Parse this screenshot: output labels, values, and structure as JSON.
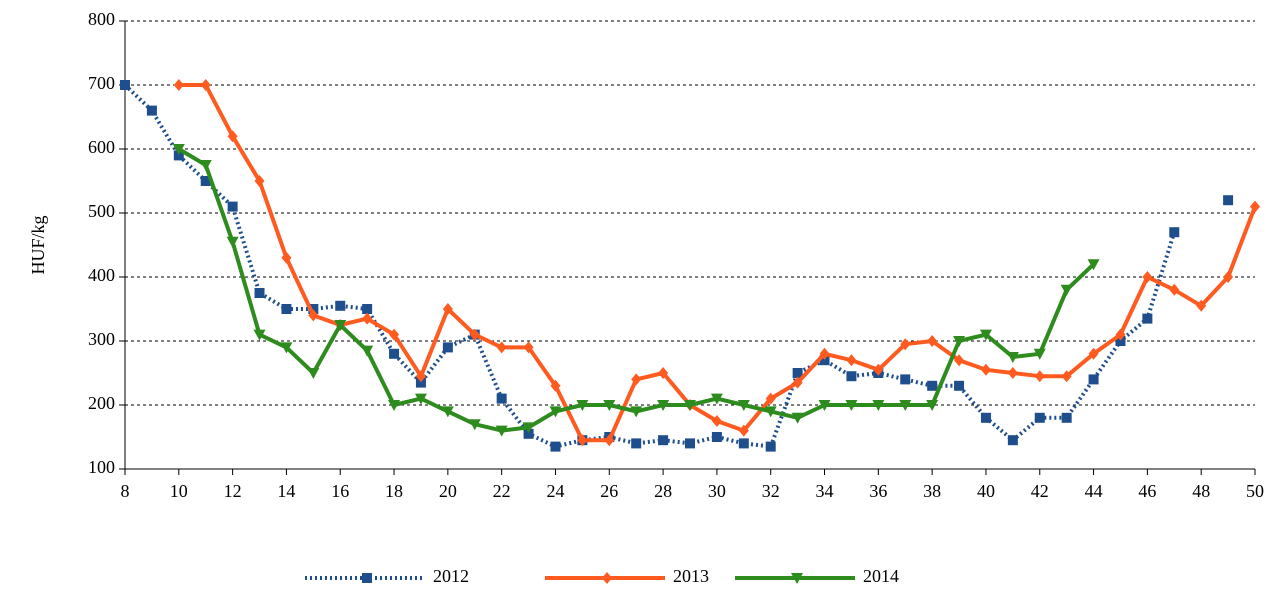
{
  "chart_data": {
    "type": "line",
    "y_label": "HUF/kg",
    "x": [
      8,
      9,
      10,
      11,
      12,
      13,
      14,
      15,
      16,
      17,
      18,
      19,
      20,
      21,
      22,
      23,
      24,
      25,
      26,
      27,
      28,
      29,
      30,
      31,
      32,
      33,
      34,
      35,
      36,
      37,
      38,
      39,
      40,
      41,
      42,
      43,
      44,
      45,
      46,
      47,
      48,
      49,
      50
    ],
    "series": [
      {
        "name": "2012",
        "color": "#1f4e8c",
        "marker": "square",
        "dash": "dotted",
        "values": [
          700,
          660,
          590,
          550,
          510,
          375,
          350,
          350,
          355,
          350,
          280,
          235,
          290,
          310,
          210,
          155,
          135,
          145,
          150,
          140,
          145,
          140,
          150,
          140,
          135,
          250,
          270,
          245,
          250,
          240,
          230,
          230,
          180,
          145,
          180,
          180,
          240,
          300,
          335,
          470,
          null,
          520,
          null
        ]
      },
      {
        "name": "2013",
        "color": "#ff5a1f",
        "marker": "diamond",
        "dash": "solid",
        "values": [
          null,
          null,
          700,
          700,
          620,
          550,
          430,
          340,
          325,
          335,
          310,
          245,
          350,
          310,
          290,
          290,
          230,
          145,
          145,
          240,
          250,
          200,
          175,
          160,
          210,
          235,
          280,
          270,
          255,
          295,
          300,
          270,
          255,
          250,
          245,
          245,
          280,
          310,
          400,
          380,
          355,
          400,
          510
        ]
      },
      {
        "name": "2014",
        "color": "#2e8b1e",
        "marker": "triangle-down",
        "dash": "solid",
        "values": [
          null,
          null,
          600,
          575,
          455,
          310,
          290,
          250,
          325,
          285,
          200,
          210,
          190,
          170,
          160,
          165,
          190,
          200,
          200,
          190,
          200,
          200,
          210,
          200,
          190,
          180,
          200,
          200,
          200,
          200,
          200,
          300,
          310,
          275,
          280,
          380,
          420,
          null,
          null,
          null,
          null,
          null,
          null
        ]
      }
    ],
    "xlim": [
      8,
      50
    ],
    "xticks": [
      8,
      10,
      12,
      14,
      16,
      18,
      20,
      22,
      24,
      26,
      28,
      30,
      32,
      34,
      36,
      38,
      40,
      42,
      44,
      46,
      48,
      50
    ],
    "ylim": [
      100,
      800
    ],
    "yticks": [
      100,
      200,
      300,
      400,
      500,
      600,
      700,
      800
    ],
    "grid": true,
    "legend": "bottom"
  }
}
